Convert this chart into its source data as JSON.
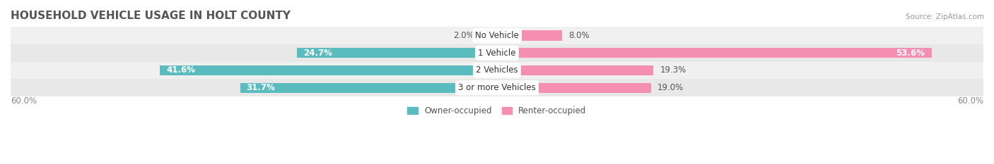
{
  "title": "HOUSEHOLD VEHICLE USAGE IN HOLT COUNTY",
  "source": "Source: ZipAtlas.com",
  "categories": [
    "No Vehicle",
    "1 Vehicle",
    "2 Vehicles",
    "3 or more Vehicles"
  ],
  "owner_values": [
    2.0,
    24.7,
    41.6,
    31.7
  ],
  "renter_values": [
    8.0,
    53.6,
    19.3,
    19.0
  ],
  "owner_color": "#5bbcbf",
  "renter_color": "#f48fb1",
  "renter_color_dark": "#f06292",
  "row_bg_colors": [
    "#f0f0f0",
    "#e8e8e8"
  ],
  "axis_max": 60.0,
  "axis_label_left": "60.0%",
  "axis_label_right": "60.0%",
  "legend_owner": "Owner-occupied",
  "legend_renter": "Renter-occupied",
  "title_fontsize": 11,
  "label_fontsize": 8.5,
  "source_fontsize": 7.5,
  "bar_height": 0.58,
  "background_color": "#ffffff",
  "owner_label_threshold": 20,
  "renter_label_threshold": 40
}
